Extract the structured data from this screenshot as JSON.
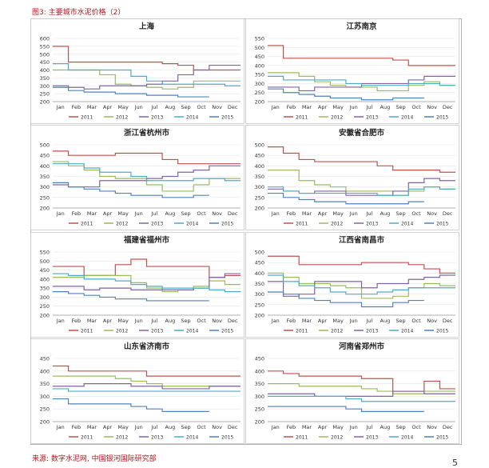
{
  "figure_title": "图3: 主要城市水泥价格（2）",
  "source": "来源: 数字水泥网, 中国银河国际研究部",
  "page_number": "5",
  "colors": {
    "2011": "#c0504d",
    "2012": "#9bbb59",
    "2013": "#8064a2",
    "2014": "#4bacc6",
    "2015": "#4f81bd"
  },
  "months": [
    "Jan",
    "Feb",
    "Mar",
    "Apr",
    "May",
    "Jun",
    "Jul",
    "Aug",
    "Sep",
    "Oct",
    "Nov",
    "Dec"
  ],
  "legend": [
    "2011",
    "2012",
    "2013",
    "2014",
    "2015"
  ],
  "chart_data": [
    {
      "type": "line",
      "title": "上海",
      "ylim": [
        200,
        600
      ],
      "yticks": [
        200,
        250,
        300,
        350,
        400,
        450,
        500,
        550,
        600
      ],
      "x": [
        1,
        2,
        3,
        4,
        5,
        6,
        7,
        8,
        9,
        10,
        11,
        12
      ],
      "series": [
        {
          "name": "2011",
          "values": [
            550,
            450,
            450,
            450,
            450,
            450,
            450,
            440,
            430,
            400,
            400,
            400
          ]
        },
        {
          "name": "2012",
          "values": [
            400,
            400,
            400,
            370,
            310,
            300,
            290,
            280,
            290,
            330,
            330,
            330
          ]
        },
        {
          "name": "2013",
          "values": [
            300,
            290,
            280,
            300,
            300,
            300,
            310,
            330,
            370,
            400,
            430,
            430
          ]
        },
        {
          "name": "2014",
          "values": [
            440,
            400,
            400,
            400,
            400,
            360,
            330,
            310,
            310,
            310,
            310,
            300
          ]
        },
        {
          "name": "2015",
          "values": [
            290,
            270,
            260,
            260,
            250,
            250,
            240,
            240,
            230,
            230,
            null,
            null
          ]
        }
      ]
    },
    {
      "type": "line",
      "title": "江苏南京",
      "ylim": [
        200,
        550
      ],
      "yticks": [
        200,
        250,
        300,
        350,
        400,
        450,
        500,
        550
      ],
      "x": [
        1,
        2,
        3,
        4,
        5,
        6,
        7,
        8,
        9,
        10,
        11,
        12
      ],
      "series": [
        {
          "name": "2011",
          "values": [
            510,
            440,
            440,
            440,
            440,
            440,
            440,
            440,
            430,
            400,
            400,
            400
          ]
        },
        {
          "name": "2012",
          "values": [
            360,
            360,
            340,
            310,
            290,
            280,
            280,
            260,
            260,
            290,
            310,
            290
          ]
        },
        {
          "name": "2013",
          "values": [
            280,
            280,
            260,
            280,
            280,
            280,
            300,
            300,
            300,
            320,
            340,
            340
          ]
        },
        {
          "name": "2014",
          "values": [
            340,
            320,
            320,
            320,
            320,
            300,
            290,
            290,
            290,
            300,
            300,
            290
          ]
        },
        {
          "name": "2015",
          "values": [
            270,
            250,
            240,
            230,
            220,
            220,
            210,
            210,
            220,
            220,
            null,
            null
          ]
        }
      ]
    },
    {
      "type": "line",
      "title": "浙江省杭州市",
      "ylim": [
        200,
        500
      ],
      "yticks": [
        200,
        250,
        300,
        350,
        400,
        450,
        500
      ],
      "x": [
        1,
        2,
        3,
        4,
        5,
        6,
        7,
        8,
        9,
        10,
        11,
        12
      ],
      "series": [
        {
          "name": "2011",
          "values": [
            470,
            450,
            450,
            450,
            460,
            460,
            460,
            430,
            410,
            410,
            410,
            410
          ]
        },
        {
          "name": "2012",
          "values": [
            420,
            400,
            380,
            350,
            340,
            340,
            310,
            280,
            280,
            310,
            340,
            340
          ]
        },
        {
          "name": "2013",
          "values": [
            310,
            300,
            300,
            330,
            330,
            330,
            340,
            350,
            370,
            380,
            400,
            400
          ]
        },
        {
          "name": "2014",
          "values": [
            410,
            410,
            390,
            370,
            370,
            350,
            330,
            330,
            330,
            340,
            340,
            330
          ]
        },
        {
          "name": "2015",
          "values": [
            320,
            300,
            290,
            280,
            270,
            260,
            260,
            250,
            250,
            260,
            null,
            null
          ]
        }
      ]
    },
    {
      "type": "line",
      "title": "安徽省合肥市",
      "ylim": [
        200,
        500
      ],
      "yticks": [
        200,
        250,
        300,
        350,
        400,
        450,
        500
      ],
      "x": [
        1,
        2,
        3,
        4,
        5,
        6,
        7,
        8,
        9,
        10,
        11,
        12
      ],
      "series": [
        {
          "name": "2011",
          "values": [
            490,
            460,
            430,
            420,
            420,
            420,
            420,
            400,
            380,
            380,
            380,
            370
          ]
        },
        {
          "name": "2012",
          "values": [
            380,
            380,
            330,
            310,
            300,
            280,
            280,
            280,
            260,
            280,
            300,
            290
          ]
        },
        {
          "name": "2013",
          "values": [
            290,
            280,
            270,
            280,
            280,
            260,
            260,
            260,
            280,
            320,
            340,
            330
          ]
        },
        {
          "name": "2014",
          "values": [
            300,
            280,
            270,
            270,
            270,
            270,
            270,
            260,
            260,
            290,
            300,
            290
          ]
        },
        {
          "name": "2015",
          "values": [
            270,
            250,
            240,
            230,
            230,
            220,
            220,
            220,
            220,
            230,
            null,
            null
          ]
        }
      ]
    },
    {
      "type": "line",
      "title": "福建省福州市",
      "ylim": [
        200,
        550
      ],
      "yticks": [
        200,
        250,
        300,
        350,
        400,
        450,
        500,
        550
      ],
      "x": [
        1,
        2,
        3,
        4,
        5,
        6,
        7,
        8,
        9,
        10,
        11,
        12
      ],
      "series": [
        {
          "name": "2011",
          "values": [
            470,
            470,
            420,
            420,
            480,
            510,
            470,
            470,
            470,
            470,
            410,
            420
          ]
        },
        {
          "name": "2012",
          "values": [
            410,
            410,
            420,
            420,
            420,
            380,
            350,
            330,
            340,
            360,
            390,
            370
          ]
        },
        {
          "name": "2013",
          "values": [
            360,
            360,
            340,
            350,
            350,
            340,
            340,
            340,
            340,
            350,
            410,
            430
          ]
        },
        {
          "name": "2014",
          "values": [
            430,
            420,
            400,
            400,
            390,
            370,
            360,
            350,
            350,
            350,
            340,
            330
          ]
        },
        {
          "name": "2015",
          "values": [
            330,
            320,
            310,
            300,
            290,
            290,
            280,
            280,
            280,
            280,
            null,
            null
          ]
        }
      ]
    },
    {
      "type": "line",
      "title": "江西省南昌市",
      "ylim": [
        200,
        500
      ],
      "yticks": [
        200,
        250,
        300,
        350,
        400,
        450,
        500
      ],
      "x": [
        1,
        2,
        3,
        4,
        5,
        6,
        7,
        8,
        9,
        10,
        11,
        12
      ],
      "series": [
        {
          "name": "2011",
          "values": [
            480,
            480,
            440,
            440,
            440,
            440,
            450,
            450,
            450,
            440,
            420,
            400
          ]
        },
        {
          "name": "2012",
          "values": [
            400,
            380,
            350,
            350,
            340,
            330,
            280,
            280,
            290,
            330,
            350,
            340
          ]
        },
        {
          "name": "2013",
          "values": [
            360,
            290,
            300,
            360,
            360,
            360,
            330,
            350,
            350,
            370,
            380,
            390
          ]
        },
        {
          "name": "2014",
          "values": [
            390,
            360,
            340,
            330,
            310,
            300,
            300,
            310,
            320,
            330,
            330,
            330
          ]
        },
        {
          "name": "2015",
          "values": [
            310,
            300,
            280,
            270,
            260,
            260,
            240,
            240,
            260,
            270,
            null,
            null
          ]
        }
      ]
    },
    {
      "type": "line",
      "title": "山东省济南市",
      "ylim": [
        200,
        450
      ],
      "yticks": [
        200,
        250,
        300,
        350,
        400,
        450
      ],
      "x": [
        1,
        2,
        3,
        4,
        5,
        6,
        7,
        8,
        9,
        10,
        11,
        12
      ],
      "series": [
        {
          "name": "2011",
          "values": [
            420,
            400,
            400,
            400,
            400,
            400,
            380,
            380,
            380,
            380,
            380,
            380
          ]
        },
        {
          "name": "2012",
          "values": [
            380,
            380,
            380,
            380,
            370,
            360,
            350,
            340,
            340,
            340,
            340,
            340
          ]
        },
        {
          "name": "2013",
          "values": [
            340,
            340,
            350,
            350,
            350,
            340,
            340,
            330,
            330,
            330,
            340,
            340
          ]
        },
        {
          "name": "2014",
          "values": [
            330,
            320,
            320,
            320,
            320,
            320,
            320,
            320,
            320,
            320,
            320,
            320
          ]
        },
        {
          "name": "2015",
          "values": [
            290,
            270,
            270,
            270,
            270,
            260,
            250,
            240,
            240,
            240,
            null,
            null
          ]
        }
      ]
    },
    {
      "type": "line",
      "title": "河南省郑州市",
      "ylim": [
        200,
        450
      ],
      "yticks": [
        200,
        250,
        300,
        350,
        400,
        450
      ],
      "x": [
        1,
        2,
        3,
        4,
        5,
        6,
        7,
        8,
        9,
        10,
        11,
        12
      ],
      "series": [
        {
          "name": "2011",
          "values": [
            400,
            390,
            380,
            380,
            380,
            380,
            370,
            370,
            320,
            320,
            360,
            330
          ]
        },
        {
          "name": "2012",
          "values": [
            350,
            350,
            340,
            340,
            340,
            340,
            330,
            320,
            310,
            310,
            320,
            320
          ]
        },
        {
          "name": "2013",
          "values": [
            310,
            310,
            310,
            300,
            300,
            300,
            300,
            300,
            320,
            320,
            310,
            310
          ]
        },
        {
          "name": "2014",
          "values": [
            300,
            300,
            300,
            300,
            300,
            290,
            280,
            280,
            280,
            280,
            280,
            280
          ]
        },
        {
          "name": "2015",
          "values": [
            260,
            260,
            260,
            260,
            260,
            250,
            240,
            240,
            240,
            240,
            null,
            null
          ]
        }
      ]
    }
  ]
}
